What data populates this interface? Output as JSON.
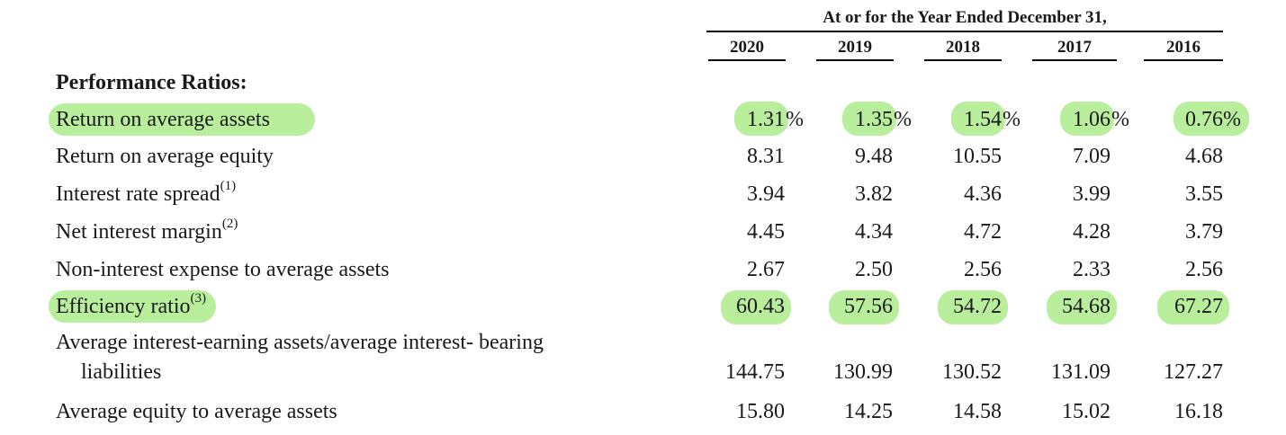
{
  "header": {
    "title": "At or for the Year Ended December 31,",
    "years": [
      "2020",
      "2019",
      "2018",
      "2017",
      "2016"
    ]
  },
  "section_title": "Performance Ratios:",
  "rows": [
    {
      "label": "Return on average assets",
      "note": "",
      "values": [
        "1.31",
        "1.35",
        "1.54",
        "1.06",
        "0.76"
      ],
      "suffix": "%"
    },
    {
      "label": "Return on average equity",
      "note": "",
      "values": [
        "8.31",
        "9.48",
        "10.55",
        "7.09",
        "4.68"
      ]
    },
    {
      "label": "Interest rate spread",
      "note": "(1)",
      "values": [
        "3.94",
        "3.82",
        "4.36",
        "3.99",
        "3.55"
      ]
    },
    {
      "label": "Net interest margin",
      "note": "(2)",
      "values": [
        "4.45",
        "4.34",
        "4.72",
        "4.28",
        "3.79"
      ]
    },
    {
      "label": "Non-interest expense to average assets",
      "note": "",
      "values": [
        "2.67",
        "2.50",
        "2.56",
        "2.33",
        "2.56"
      ]
    },
    {
      "label": "Efficiency ratio",
      "note": "(3)",
      "values": [
        "60.43",
        "57.56",
        "54.72",
        "54.68",
        "67.27"
      ]
    },
    {
      "label_line1": "Average interest-earning assets/average interest- bearing",
      "label_line2": "liabilities",
      "values": [
        "144.75",
        "130.99",
        "130.52",
        "131.09",
        "127.27"
      ]
    },
    {
      "label": "Average equity to average assets",
      "note": "",
      "values": [
        "15.80",
        "14.25",
        "14.58",
        "15.02",
        "16.18"
      ]
    }
  ],
  "colors": {
    "highlight": "#b9ee9c",
    "text": "#1a1a1a",
    "rule": "#000000"
  }
}
